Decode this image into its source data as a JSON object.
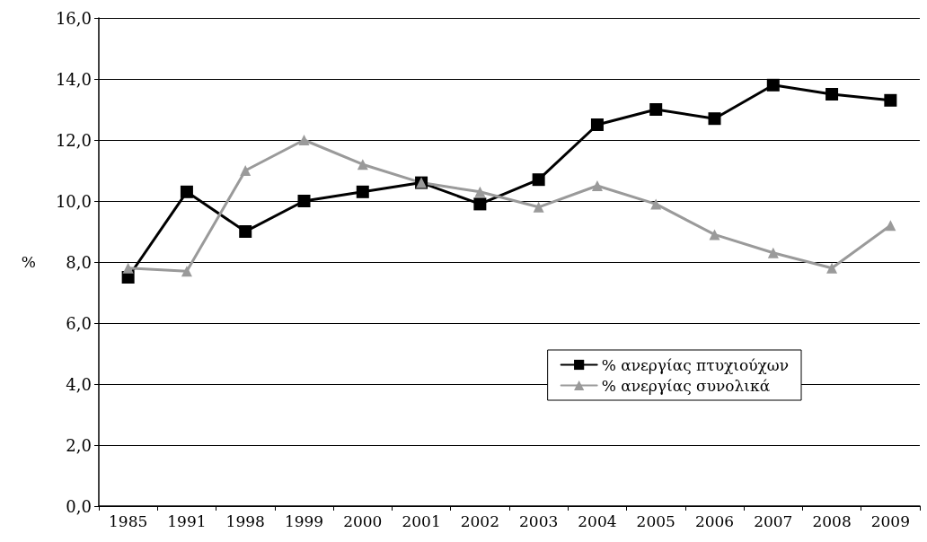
{
  "chart_data": {
    "type": "line",
    "ylabel": "%",
    "categories": [
      "1985",
      "1991",
      "1998",
      "1999",
      "2000",
      "2001",
      "2002",
      "2003",
      "2004",
      "2005",
      "2006",
      "2007",
      "2008",
      "2009"
    ],
    "series": [
      {
        "name": "% ανεργίας πτυχιούχων",
        "color": "#000000",
        "marker": "square",
        "values": [
          7.5,
          10.3,
          9.0,
          10.0,
          10.3,
          10.6,
          9.9,
          10.7,
          12.5,
          13.0,
          12.7,
          13.8,
          13.5,
          13.3
        ]
      },
      {
        "name": "% ανεργίας συνολικά",
        "color": "#9a9a9a",
        "marker": "triangle",
        "values": [
          7.8,
          7.7,
          11.0,
          12.0,
          11.2,
          10.6,
          10.3,
          9.8,
          10.5,
          9.9,
          8.9,
          8.3,
          7.8,
          9.2
        ]
      }
    ],
    "ylim": [
      0,
      16
    ],
    "yticks": [
      {
        "value": 0,
        "label": "0,0"
      },
      {
        "value": 2,
        "label": "2,0"
      },
      {
        "value": 4,
        "label": "4,0"
      },
      {
        "value": 6,
        "label": "6,0"
      },
      {
        "value": 8,
        "label": "8,0"
      },
      {
        "value": 10,
        "label": "10,0"
      },
      {
        "value": 12,
        "label": "12,0"
      },
      {
        "value": 14,
        "label": "14,0"
      },
      {
        "value": 16,
        "label": "16,0"
      }
    ],
    "grid": "y",
    "legend": "bottom right",
    "line_style": "solid"
  }
}
